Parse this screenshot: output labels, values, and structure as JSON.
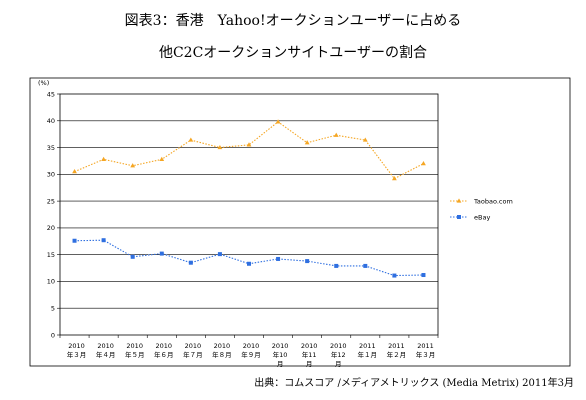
{
  "title_line1": "図表3：香港　Yahoo!オークションユーザーに占める",
  "title_line2": "他C2Cオークションサイトユーザーの割合",
  "source": "出典：コムスコア /メディアメトリックス (Media Metrix) 2011年3月",
  "chart_data": {
    "type": "line",
    "y_unit": "(%)",
    "ylim": [
      0,
      45
    ],
    "yticks": [
      0,
      5,
      10,
      15,
      20,
      25,
      30,
      35,
      40,
      45
    ],
    "grid": true,
    "legend_position": "right",
    "categories": [
      {
        "year": "2010",
        "month": "年３月"
      },
      {
        "year": "2010",
        "month": "年４月"
      },
      {
        "year": "2010",
        "month": "年５月"
      },
      {
        "year": "2010",
        "month": "年６月"
      },
      {
        "year": "2010",
        "month": "年７月"
      },
      {
        "year": "2010",
        "month": "年８月"
      },
      {
        "year": "2010",
        "month": "年９月"
      },
      {
        "year": "2010",
        "month": "年10",
        "extra": "月"
      },
      {
        "year": "2010",
        "month": "年11",
        "extra": "月"
      },
      {
        "year": "2010",
        "month": "年12",
        "extra": "月"
      },
      {
        "year": "2011",
        "month": "年１月"
      },
      {
        "year": "2011",
        "month": "年２月"
      },
      {
        "year": "2011",
        "month": "年３月"
      }
    ],
    "series": [
      {
        "name": "Taobao.com",
        "color": "#f5a623",
        "marker": "triangle",
        "values": [
          30.5,
          32.8,
          31.6,
          32.8,
          36.4,
          35.0,
          35.5,
          39.8,
          35.9,
          37.3,
          36.4,
          29.2,
          32.0
        ]
      },
      {
        "name": "eBay",
        "color": "#2f6fe0",
        "marker": "square",
        "values": [
          17.6,
          17.7,
          14.6,
          15.2,
          13.5,
          15.1,
          13.3,
          14.2,
          13.8,
          12.9,
          12.9,
          11.1,
          11.2
        ]
      }
    ]
  }
}
